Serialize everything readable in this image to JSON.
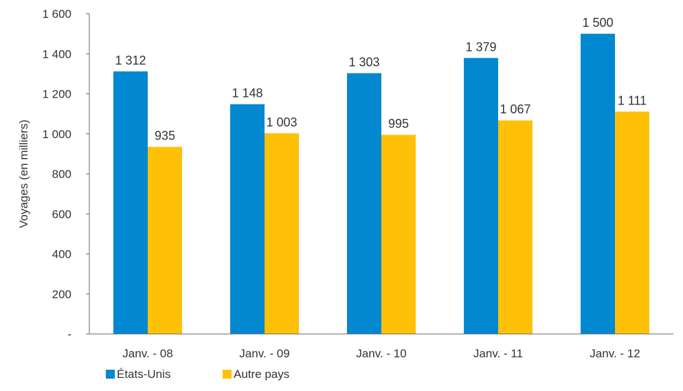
{
  "chart_data": {
    "type": "bar",
    "title": "",
    "xlabel": "",
    "ylabel": "Voyages (en milliers)",
    "ylim": [
      0,
      1600
    ],
    "yticks": [
      0,
      200,
      400,
      600,
      800,
      1000,
      1200,
      1400,
      1600
    ],
    "ytick_labels": [
      "-",
      "200",
      "400",
      "600",
      "800",
      "1 000",
      "1 200",
      "1 400",
      "1 600"
    ],
    "categories": [
      "Janv. - 08",
      "Janv. - 09",
      "Janv. - 10",
      "Janv. - 11",
      "Janv. - 12"
    ],
    "series": [
      {
        "name": "États-Unis",
        "color": "#0288D1",
        "values": [
          1312,
          1148,
          1303,
          1379,
          1500
        ],
        "labels": [
          "1 312",
          "1 148",
          "1 303",
          "1 379",
          "1 500"
        ]
      },
      {
        "name": "Autre pays",
        "color": "#FFC107",
        "values": [
          935,
          1003,
          995,
          1067,
          1111
        ],
        "labels": [
          "935",
          "1 003",
          "995",
          "1 067",
          "1 111"
        ]
      }
    ],
    "grid": false,
    "legend_position": "bottom-left"
  }
}
